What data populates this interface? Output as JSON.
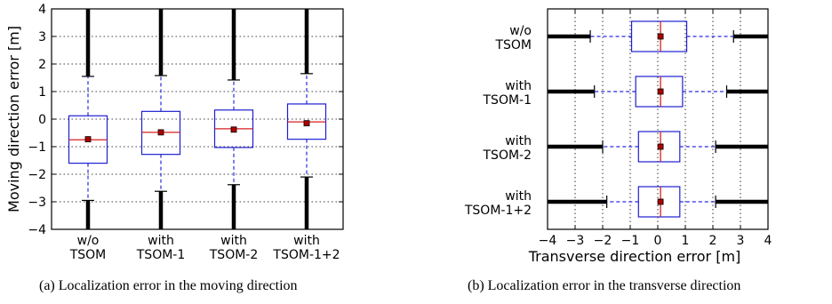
{
  "chart_data": [
    {
      "type": "boxplot",
      "orientation": "vertical",
      "caption": "(a) Localization error in the moving direction",
      "xlabel": "",
      "ylabel": "Moving direction error [m]",
      "ylim": [
        -4,
        4
      ],
      "yticks": [
        -4,
        -3,
        -2,
        -1,
        0,
        1,
        2,
        3,
        4
      ],
      "grid": "horizontal dotted",
      "categories": [
        [
          "w/o",
          "TSOM"
        ],
        [
          "with",
          "TSOM-1"
        ],
        [
          "with",
          "TSOM-2"
        ],
        [
          "with",
          "TSOM-1+2"
        ]
      ],
      "boxes": [
        {
          "whisker_low": -2.95,
          "q1": -1.6,
          "median": -0.75,
          "mean": -0.73,
          "q3": 0.12,
          "whisker_high": 1.55,
          "outliers_low": [
            -2.95,
            -4
          ],
          "outliers_high": [
            1.55,
            4
          ]
        },
        {
          "whisker_low": -2.62,
          "q1": -1.28,
          "median": -0.48,
          "mean": -0.48,
          "q3": 0.28,
          "whisker_high": 1.58,
          "outliers_low": [
            -2.62,
            -4
          ],
          "outliers_high": [
            1.58,
            4
          ]
        },
        {
          "whisker_low": -2.38,
          "q1": -1.03,
          "median": -0.35,
          "mean": -0.38,
          "q3": 0.33,
          "whisker_high": 1.42,
          "outliers_low": [
            -2.38,
            -4
          ],
          "outliers_high": [
            1.42,
            4
          ]
        },
        {
          "whisker_low": -2.1,
          "q1": -0.73,
          "median": -0.1,
          "mean": -0.15,
          "q3": 0.55,
          "whisker_high": 1.65,
          "outliers_low": [
            -2.1,
            -4
          ],
          "outliers_high": [
            1.65,
            4
          ]
        }
      ]
    },
    {
      "type": "boxplot",
      "orientation": "horizontal",
      "caption": "(b) Localization error in the transverse direction",
      "xlabel": "Transverse direction error [m]",
      "ylabel": "",
      "xlim": [
        -4,
        4
      ],
      "xticks": [
        -4,
        -3,
        -2,
        -1,
        0,
        1,
        2,
        3,
        4
      ],
      "grid": "vertical dotted",
      "categories": [
        [
          "w/o",
          "TSOM"
        ],
        [
          "with",
          "TSOM-1"
        ],
        [
          "with",
          "TSOM-2"
        ],
        [
          "with",
          "TSOM-1+2"
        ]
      ],
      "boxes": [
        {
          "whisker_low": -2.45,
          "q1": -0.95,
          "median": 0.1,
          "mean": 0.1,
          "q3": 1.05,
          "whisker_high": 2.75,
          "outliers_low": [
            -2.45,
            -4
          ],
          "outliers_high": [
            2.75,
            4
          ]
        },
        {
          "whisker_low": -2.3,
          "q1": -0.8,
          "median": 0.1,
          "mean": 0.1,
          "q3": 0.9,
          "whisker_high": 2.5,
          "outliers_low": [
            -2.3,
            -4
          ],
          "outliers_high": [
            2.5,
            4
          ]
        },
        {
          "whisker_low": -2.0,
          "q1": -0.7,
          "median": 0.1,
          "mean": 0.1,
          "q3": 0.8,
          "whisker_high": 2.1,
          "outliers_low": [
            -2.0,
            -4
          ],
          "outliers_high": [
            2.1,
            4
          ]
        },
        {
          "whisker_low": -1.85,
          "q1": -0.7,
          "median": 0.1,
          "mean": 0.1,
          "q3": 0.8,
          "whisker_high": 2.1,
          "outliers_low": [
            -1.85,
            -4
          ],
          "outliers_high": [
            2.1,
            4
          ]
        }
      ]
    }
  ],
  "colors": {
    "box": "#1f1fd1",
    "whisker": "#2b2be0",
    "median": "#d62020",
    "mean_fill": "#b00000",
    "mean_edge": "#000000",
    "outlier": "#000000",
    "grid": "#000000"
  }
}
